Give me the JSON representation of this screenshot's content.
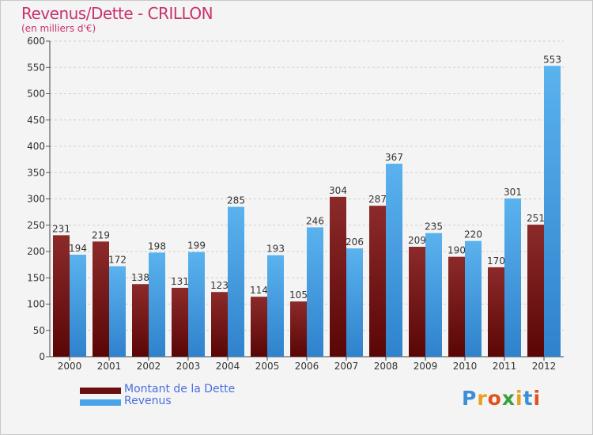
{
  "chart_data": {
    "type": "bar",
    "title": "Revenus/Dette - CRILLON",
    "subtitle": "(en milliers d'€)",
    "categories": [
      "2000",
      "2001",
      "2002",
      "2003",
      "2004",
      "2005",
      "2006",
      "2007",
      "2008",
      "2009",
      "2010",
      "2011",
      "2012"
    ],
    "series": [
      {
        "name": "Montant de la Dette",
        "color": "#7a1c1c",
        "values": [
          231,
          219,
          138,
          131,
          123,
          114,
          105,
          304,
          287,
          209,
          190,
          170,
          251
        ]
      },
      {
        "name": "Revenus",
        "color": "#4aa3e6",
        "values": [
          194,
          172,
          198,
          199,
          285,
          193,
          246,
          206,
          367,
          235,
          220,
          301,
          553
        ]
      }
    ],
    "ylim": [
      0,
      600
    ],
    "yticks": [
      0,
      50,
      100,
      150,
      200,
      250,
      300,
      350,
      400,
      450,
      500,
      550,
      600
    ],
    "grid": true,
    "legend_position": "bottom-left"
  },
  "logo": {
    "letters": [
      "P",
      "r",
      "o",
      "x",
      "i",
      "t",
      "i"
    ],
    "colors": [
      "#3a8fd8",
      "#e8a020",
      "#e05020",
      "#3aa040",
      "#e8a020",
      "#3a8fd8",
      "#e05020"
    ]
  }
}
